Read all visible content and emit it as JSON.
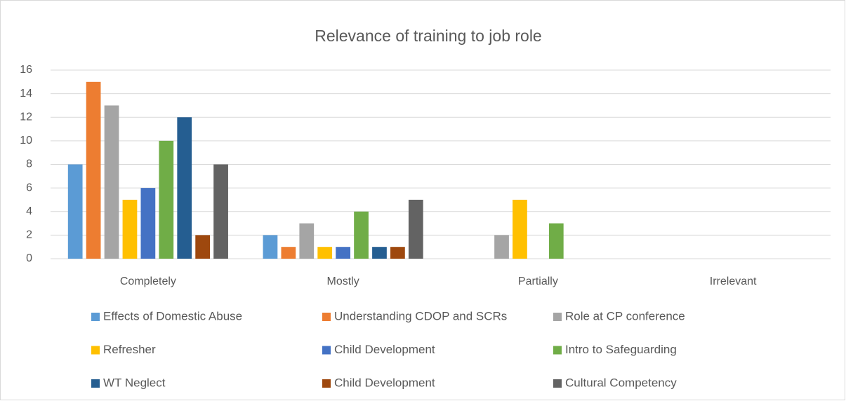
{
  "chart_data": {
    "type": "bar",
    "title": "Relevance of training to job role",
    "categories": [
      "Completely",
      "Mostly",
      "Partially",
      "Irrelevant"
    ],
    "series": [
      {
        "name": "Effects of Domestic Abuse",
        "color": "#5b9bd5",
        "values": [
          8,
          2,
          0,
          0
        ]
      },
      {
        "name": "Understanding CDOP and SCRs",
        "color": "#ed7d31",
        "values": [
          15,
          1,
          0,
          0
        ]
      },
      {
        "name": "Role at CP conference",
        "color": "#a5a5a5",
        "values": [
          13,
          3,
          2,
          0
        ]
      },
      {
        "name": "Refresher",
        "color": "#ffc000",
        "values": [
          5,
          1,
          5,
          0
        ]
      },
      {
        "name": "Child Development",
        "color": "#4472c4",
        "values": [
          6,
          1,
          0,
          0
        ]
      },
      {
        "name": "Intro to Safeguarding",
        "color": "#70ad47",
        "values": [
          10,
          4,
          3,
          0
        ]
      },
      {
        "name": "WT Neglect",
        "color": "#255e91",
        "values": [
          12,
          1,
          0,
          0
        ]
      },
      {
        "name": "Child Development",
        "color": "#9e480e",
        "values": [
          2,
          1,
          0,
          0
        ]
      },
      {
        "name": "Cultural Competency",
        "color": "#636363",
        "values": [
          8,
          5,
          0,
          0
        ]
      }
    ],
    "ylim": [
      0,
      16
    ],
    "yticks": [
      0,
      2,
      4,
      6,
      8,
      10,
      12,
      14,
      16
    ],
    "grid": true,
    "legend": "bottom"
  }
}
